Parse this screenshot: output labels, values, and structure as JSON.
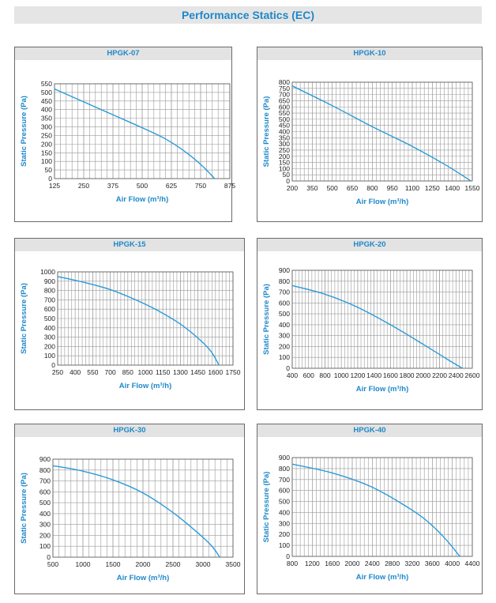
{
  "page": {
    "title": "Performance Statics (EC)"
  },
  "chart_data": [
    {
      "type": "line",
      "title": "HPGK-07",
      "xlabel": "Air Flow (m³/h)",
      "ylabel": "Static Pressure (Pa)",
      "xlim": [
        125,
        875
      ],
      "ylim": [
        0,
        550
      ],
      "xticks": [
        125,
        250,
        375,
        500,
        625,
        750,
        875
      ],
      "yticks": [
        0,
        50,
        100,
        150,
        200,
        250,
        300,
        350,
        400,
        450,
        500,
        550
      ],
      "grid": true,
      "series": [
        {
          "x": [
            125,
            250,
            375,
            500,
            600,
            690,
            760,
            810
          ],
          "y": [
            520,
            445,
            370,
            295,
            230,
            150,
            70,
            0
          ]
        }
      ]
    },
    {
      "type": "line",
      "title": "HPGK-10",
      "xlabel": "Air Flow (m³/h)",
      "ylabel": "Static Pressure (Pa)",
      "xlim": [
        200,
        1550
      ],
      "ylim": [
        0,
        800
      ],
      "xticks": [
        200,
        350,
        500,
        650,
        800,
        950,
        1100,
        1250,
        1400,
        1550
      ],
      "yticks": [
        0,
        50,
        100,
        150,
        200,
        250,
        300,
        350,
        400,
        450,
        500,
        550,
        600,
        650,
        700,
        750,
        800
      ],
      "grid": true,
      "series": [
        {
          "x": [
            200,
            500,
            800,
            1100,
            1350,
            1540
          ],
          "y": [
            770,
            610,
            440,
            280,
            130,
            0
          ]
        }
      ]
    },
    {
      "type": "line",
      "title": "HPGK-15",
      "xlabel": "Air Flow (m³/h)",
      "ylabel": "Static Pressure (Pa)",
      "xlim": [
        250,
        1750
      ],
      "ylim": [
        0,
        1000
      ],
      "xticks": [
        250,
        400,
        550,
        700,
        850,
        1000,
        1150,
        1300,
        1450,
        1600,
        1750
      ],
      "yticks": [
        0,
        100,
        200,
        300,
        400,
        500,
        600,
        700,
        800,
        900,
        1000
      ],
      "grid": true,
      "series": [
        {
          "x": [
            250,
            500,
            700,
            900,
            1100,
            1300,
            1450,
            1560,
            1630
          ],
          "y": [
            950,
            880,
            810,
            710,
            590,
            440,
            290,
            150,
            0
          ]
        }
      ]
    },
    {
      "type": "line",
      "title": "HPGK-20",
      "xlabel": "Air Flow (m³/h)",
      "ylabel": "Static Pressure (Pa)",
      "xlim": [
        400,
        2600
      ],
      "ylim": [
        0,
        900
      ],
      "xticks": [
        400,
        600,
        800,
        1000,
        1200,
        1400,
        1600,
        1800,
        2000,
        2200,
        2400,
        2600
      ],
      "yticks": [
        0,
        100,
        200,
        300,
        400,
        500,
        600,
        700,
        800,
        900
      ],
      "grid": true,
      "series": [
        {
          "x": [
            400,
            800,
            1200,
            1600,
            2000,
            2300,
            2480
          ],
          "y": [
            760,
            680,
            560,
            400,
            220,
            80,
            0
          ]
        }
      ]
    },
    {
      "type": "line",
      "title": "HPGK-30",
      "xlabel": "Air Flow (m³/h)",
      "ylabel": "Static Pressure (Pa)",
      "xlim": [
        500,
        3500
      ],
      "ylim": [
        0,
        900
      ],
      "xticks": [
        500,
        1000,
        1500,
        2000,
        2500,
        3000,
        3500
      ],
      "yticks": [
        0,
        100,
        200,
        300,
        400,
        500,
        600,
        700,
        800,
        900
      ],
      "grid": true,
      "series": [
        {
          "x": [
            500,
            1000,
            1500,
            2000,
            2500,
            2900,
            3150,
            3280
          ],
          "y": [
            840,
            790,
            710,
            590,
            410,
            230,
            100,
            0
          ]
        }
      ]
    },
    {
      "type": "line",
      "title": "HPGK-40",
      "xlabel": "Air Flow (m³/h)",
      "ylabel": "Static Pressure (Pa)",
      "xlim": [
        800,
        4400
      ],
      "ylim": [
        0,
        900
      ],
      "xticks": [
        800,
        1200,
        1600,
        2000,
        2400,
        2800,
        3200,
        3600,
        4000,
        4400
      ],
      "yticks": [
        0,
        100,
        200,
        300,
        400,
        500,
        600,
        700,
        800,
        900
      ],
      "grid": true,
      "series": [
        {
          "x": [
            800,
            1600,
            2400,
            3200,
            3600,
            3900,
            4150
          ],
          "y": [
            840,
            760,
            630,
            420,
            280,
            140,
            0
          ]
        }
      ]
    }
  ]
}
